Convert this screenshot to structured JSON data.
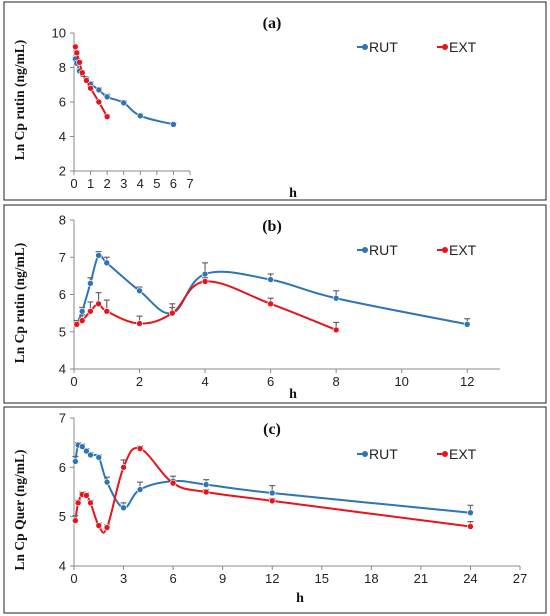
{
  "colors": {
    "rut": "#2e75b6",
    "ext": "#e8141b"
  },
  "chart_data": [
    {
      "type": "line",
      "title": "(a)",
      "xlabel": "h",
      "ylabel": "Ln Cp rutin (ng/mL)",
      "xlim": [
        0,
        7
      ],
      "ylim": [
        2,
        10
      ],
      "xticks": [
        0,
        1,
        2,
        3,
        4,
        5,
        6,
        7
      ],
      "yticks": [
        2,
        4,
        6,
        8,
        10
      ],
      "legend_position": "top-right",
      "series": [
        {
          "name": "RUT",
          "color": "#2e75b6",
          "x": [
            0.083,
            0.167,
            0.333,
            0.5,
            0.75,
            1,
            1.5,
            2,
            3,
            4,
            6
          ],
          "y": [
            8.5,
            8.25,
            7.8,
            7.6,
            7.35,
            7.05,
            6.7,
            6.3,
            5.95,
            5.2,
            4.7
          ],
          "err": [
            0.1,
            0.1,
            0.1,
            0.1,
            0.1,
            0.12,
            0.12,
            0.15,
            0.12,
            0.1,
            0.1
          ]
        },
        {
          "name": "EXT",
          "color": "#e8141b",
          "x": [
            0.083,
            0.167,
            0.333,
            0.5,
            0.75,
            1,
            1.5,
            2
          ],
          "y": [
            9.2,
            8.85,
            8.3,
            7.7,
            7.25,
            6.8,
            6.0,
            5.15
          ],
          "err": [
            0.1,
            0.1,
            0.1,
            0.1,
            0.1,
            0.1,
            0.1,
            0.1
          ]
        }
      ]
    },
    {
      "type": "line",
      "title": "(b)",
      "xlabel": "h",
      "ylabel": "Ln Cp rutin (ng/mL)",
      "xlim": [
        0,
        13
      ],
      "ylim": [
        4,
        8
      ],
      "xticks": [
        0,
        2,
        4,
        6,
        8,
        10,
        12
      ],
      "yticks": [
        4,
        5,
        6,
        7,
        8
      ],
      "legend_position": "top-right",
      "series": [
        {
          "name": "RUT",
          "color": "#2e75b6",
          "x": [
            0.083,
            0.25,
            0.5,
            0.75,
            1,
            2,
            3,
            4,
            6,
            8,
            12
          ],
          "y": [
            5.2,
            5.55,
            6.3,
            7.05,
            6.85,
            6.1,
            5.5,
            6.55,
            6.4,
            5.9,
            5.2
          ],
          "err": [
            0.1,
            0.1,
            0.15,
            0.1,
            0.15,
            0.1,
            0.25,
            0.3,
            0.15,
            0.2,
            0.15
          ]
        },
        {
          "name": "EXT",
          "color": "#e8141b",
          "x": [
            0.083,
            0.25,
            0.5,
            0.75,
            1,
            2,
            3,
            4,
            6,
            8
          ],
          "y": [
            5.2,
            5.3,
            5.55,
            5.75,
            5.55,
            5.22,
            5.5,
            6.35,
            5.75,
            5.05
          ],
          "err": [
            0.1,
            0.15,
            0.25,
            0.3,
            0.3,
            0.2,
            0.15,
            0.1,
            0.15,
            0.2
          ]
        }
      ]
    },
    {
      "type": "line",
      "title": "(c)",
      "xlabel": "h",
      "ylabel": "Ln Cp Quer (ng/mL)",
      "xlim": [
        0,
        27
      ],
      "ylim": [
        4,
        7
      ],
      "xticks": [
        0,
        3,
        6,
        9,
        12,
        15,
        18,
        21,
        24,
        27
      ],
      "yticks": [
        4,
        5,
        6,
        7
      ],
      "legend_position": "top-right",
      "series": [
        {
          "name": "RUT",
          "color": "#2e75b6",
          "x": [
            0.083,
            0.25,
            0.5,
            0.75,
            1,
            1.5,
            2,
            3,
            4,
            6,
            8,
            12,
            24
          ],
          "y": [
            6.12,
            6.45,
            6.42,
            6.33,
            6.25,
            6.2,
            5.7,
            5.18,
            5.55,
            5.72,
            5.65,
            5.48,
            5.08
          ],
          "err": [
            0.1,
            0.05,
            0.05,
            0.05,
            0.05,
            0.05,
            0.1,
            0.1,
            0.15,
            0.1,
            0.1,
            0.15,
            0.15
          ]
        },
        {
          "name": "EXT",
          "color": "#e8141b",
          "x": [
            0.083,
            0.25,
            0.5,
            0.75,
            1,
            1.5,
            2,
            3,
            4,
            6,
            8,
            12,
            24
          ],
          "y": [
            4.92,
            5.28,
            5.45,
            5.43,
            5.28,
            4.82,
            4.78,
            6.0,
            6.38,
            5.68,
            5.5,
            5.32,
            4.8
          ],
          "err": [
            0.1,
            0.05,
            0.05,
            0.05,
            0.05,
            0.05,
            0.05,
            0.15,
            0.05,
            0.05,
            0.05,
            0.05,
            0.1
          ]
        }
      ]
    }
  ]
}
